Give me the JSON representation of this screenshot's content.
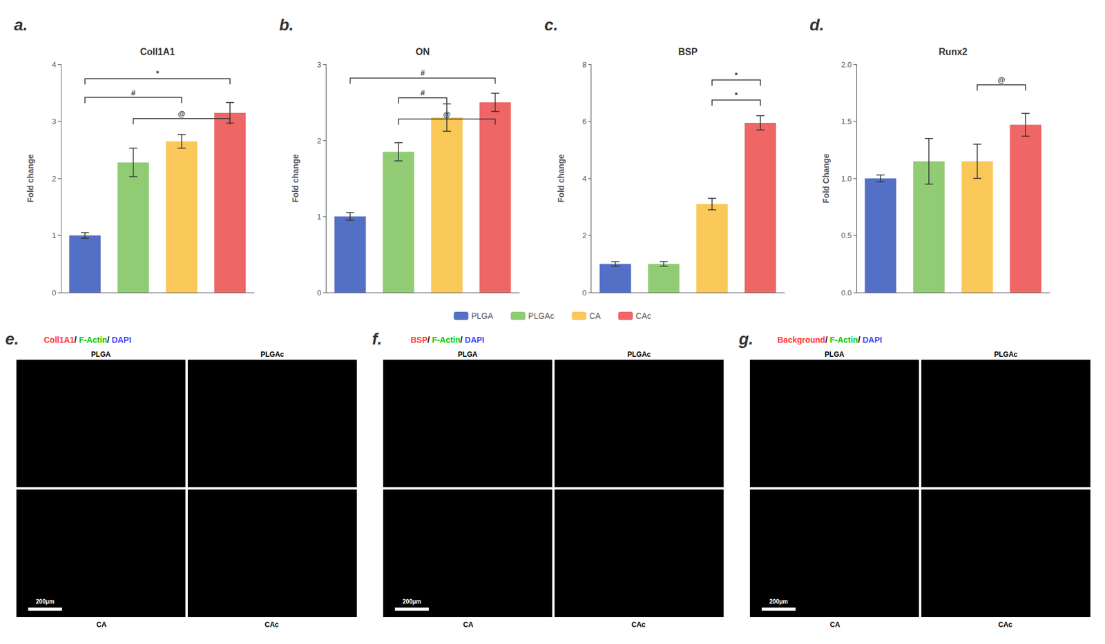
{
  "chart_data": [
    {
      "type": "bar",
      "panel_label": "a.",
      "title": "Coll1A1",
      "ylabel": "Fold change",
      "categories": [
        "PLGA",
        "PLGAc",
        "CA",
        "CAc"
      ],
      "values": [
        1.0,
        2.28,
        2.65,
        3.15
      ],
      "errors": [
        0.05,
        0.25,
        0.12,
        0.18
      ],
      "ylim": [
        0,
        4
      ],
      "yticks": [
        0,
        1,
        2,
        3,
        4
      ],
      "grid": false,
      "legend": "bottom",
      "tick_labels": "y",
      "annotations": [
        {
          "text": "*",
          "from": "PLGA",
          "to": "CAc",
          "y": 3.75
        },
        {
          "text": "#",
          "from": "PLGA",
          "to": "CA",
          "y": 3.42
        },
        {
          "text": "@",
          "from": "PLGAc",
          "to": "CAc",
          "y": 3.05
        }
      ]
    },
    {
      "type": "bar",
      "panel_label": "b.",
      "title": "ON",
      "ylabel": "Fold change",
      "categories": [
        "PLGA",
        "PLGAc",
        "CA",
        "CAc"
      ],
      "values": [
        1.0,
        1.85,
        2.3,
        2.5
      ],
      "errors": [
        0.05,
        0.12,
        0.18,
        0.12
      ],
      "ylim": [
        0,
        3
      ],
      "yticks": [
        0,
        1,
        2,
        3
      ],
      "grid": false,
      "legend": "bottom",
      "tick_labels": "y",
      "annotations": [
        {
          "text": "#",
          "from": "PLGA",
          "to": "CAc",
          "y": 2.82
        },
        {
          "text": "#",
          "from": "PLGAc",
          "to": "CA",
          "y": 2.56
        },
        {
          "text": "@",
          "from": "PLGAc",
          "to": "CAc",
          "y": 2.28
        }
      ]
    },
    {
      "type": "bar",
      "panel_label": "c.",
      "title": "BSP",
      "ylabel": "Fold change",
      "categories": [
        "PLGA",
        "PLGAc",
        "CA",
        "CAc"
      ],
      "values": [
        1.0,
        1.0,
        3.1,
        5.95
      ],
      "errors": [
        0.08,
        0.08,
        0.2,
        0.25
      ],
      "ylim": [
        0,
        8
      ],
      "yticks": [
        0,
        2,
        4,
        6,
        8
      ],
      "grid": false,
      "legend": "bottom",
      "tick_labels": "y",
      "annotations": [
        {
          "text": "*",
          "from": "CA",
          "to": "CAc",
          "y": 7.45
        },
        {
          "text": "*",
          "from": "CA",
          "to": "CAc",
          "y": 6.75
        }
      ]
    },
    {
      "type": "bar",
      "panel_label": "d.",
      "title": "Runx2",
      "ylabel": "Fold Change",
      "categories": [
        "PLGA",
        "PLGAc",
        "CA",
        "CAc"
      ],
      "values": [
        1.0,
        1.15,
        1.15,
        1.47
      ],
      "errors": [
        0.03,
        0.2,
        0.15,
        0.1
      ],
      "ylim": [
        0.0,
        2.0
      ],
      "yticks": [
        {
          "value": 0,
          "label": "0.0"
        },
        0.5,
        {
          "value": 1,
          "label": "1.0"
        },
        1.5,
        {
          "value": 2,
          "label": "2.0"
        }
      ],
      "grid": false,
      "legend": "bottom",
      "tick_labels": "y",
      "annotations": [
        {
          "text": "@",
          "from": "CA",
          "to": "CAc",
          "y": 1.82
        }
      ]
    },
    {
      "type": "image",
      "panel_label": "e.",
      "title_parts": [
        {
          "text": "Coll1A1",
          "color": "#ff3333"
        },
        {
          "text": "F-Actin",
          "color": "#00cc00"
        },
        {
          "text": "DAPI",
          "color": "#4444ff"
        }
      ],
      "title_separator": "/ ",
      "column_labels": [
        "PLGA",
        "PLGAc"
      ],
      "row_labels": [
        "CA",
        "CAc"
      ],
      "scale_bar": "200μm"
    },
    {
      "type": "image",
      "panel_label": "f.",
      "title_parts": [
        {
          "text": "BSP",
          "color": "#ff3333"
        },
        {
          "text": "F-Actin",
          "color": "#00cc00"
        },
        {
          "text": "DAPI",
          "color": "#4444ff"
        }
      ],
      "title_separator": "/ ",
      "column_labels": [
        "PLGA",
        "PLGAc"
      ],
      "row_labels": [
        "CA",
        "CAc"
      ],
      "scale_bar": "200μm"
    },
    {
      "type": "image",
      "panel_label": "g.",
      "title_parts": [
        {
          "text": "Background",
          "color": "#ff3333"
        },
        {
          "text": "F-Actin",
          "color": "#00cc00"
        },
        {
          "text": "DAPI",
          "color": "#4444ff"
        }
      ],
      "title_separator": "/ ",
      "column_labels": [
        "PLGA",
        "PLGAc"
      ],
      "row_labels": [
        "CA",
        "CAc"
      ],
      "scale_bar": "200μm"
    }
  ]
}
